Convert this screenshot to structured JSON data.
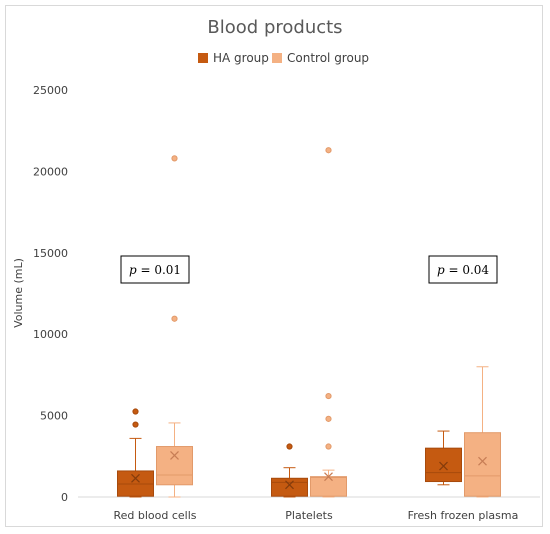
{
  "chart_data": {
    "type": "box",
    "title": "Blood products",
    "ylabel": "Volume (mL)",
    "ylim": [
      0,
      25000
    ],
    "yticks": [
      0,
      5000,
      10000,
      15000,
      20000,
      25000
    ],
    "grid": false,
    "legend_position": "top",
    "categories": [
      "Red blood cells",
      "Platelets",
      "Fresh frozen plasma"
    ],
    "series": [
      {
        "name": "HA group",
        "color": "#c55a11",
        "boxes": [
          {
            "min": 0,
            "q1": 50,
            "median": 800,
            "q3": 1600,
            "max": 3600,
            "mean": 1150,
            "outliers": [
              4450,
              5250
            ]
          },
          {
            "min": 0,
            "q1": 50,
            "median": 900,
            "q3": 1150,
            "max": 1800,
            "mean": 750,
            "outliers": [
              3100
            ]
          },
          {
            "min": 750,
            "q1": 950,
            "median": 1500,
            "q3": 3000,
            "max": 4050,
            "mean": 1900,
            "outliers": []
          }
        ]
      },
      {
        "name": "Control group",
        "color": "#f4b183",
        "boxes": [
          {
            "min": 0,
            "q1": 750,
            "median": 1350,
            "q3": 3100,
            "max": 4550,
            "mean": 2550,
            "outliers": [
              10950,
              20800
            ]
          },
          {
            "min": 0,
            "q1": 50,
            "median": 1200,
            "q3": 1250,
            "max": 1650,
            "mean": 1250,
            "outliers": [
              3100,
              4800,
              6200,
              21300
            ]
          },
          {
            "min": 0,
            "q1": 50,
            "median": 1300,
            "q3": 3950,
            "max": 8000,
            "mean": 2200,
            "outliers": []
          }
        ]
      }
    ],
    "annotations": [
      {
        "category": 0,
        "prefix": "p",
        "text": " = 0.01"
      },
      {
        "category": 2,
        "prefix": "p",
        "text": " = 0.04"
      }
    ]
  }
}
